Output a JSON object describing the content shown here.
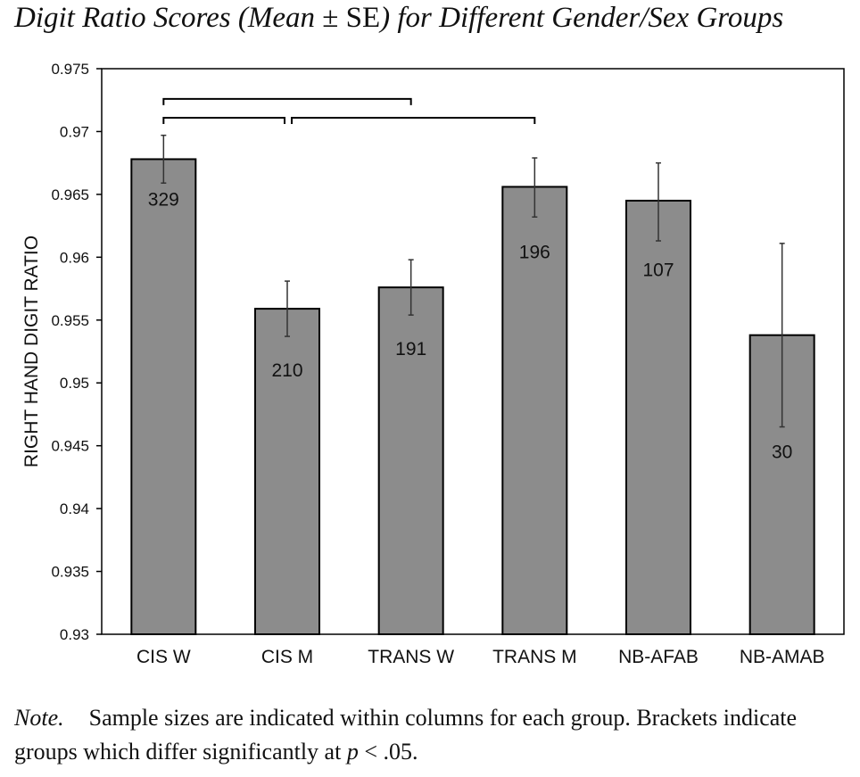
{
  "title": {
    "part1": "Digit Ratio Scores (Mean ",
    "pm": "±",
    "se": " SE",
    "part2": ") for Different Gender/Sex Groups"
  },
  "note": {
    "label": "Note.",
    "text1": "Sample sizes are indicated within columns for each group. Brackets indicate groups which differ significantly at ",
    "p": "p",
    "text2": " < .05."
  },
  "chart_data": {
    "type": "bar",
    "title": "Digit Ratio Scores (Mean ± SE) for Different Gender/Sex Groups",
    "xlabel": "",
    "ylabel": "RIGHT HAND DIGIT RATIO",
    "ylim": [
      0.93,
      0.975
    ],
    "yticks": [
      0.93,
      0.935,
      0.94,
      0.945,
      0.95,
      0.955,
      0.96,
      0.965,
      0.97,
      0.975
    ],
    "ytick_labels": [
      "0.93",
      "0.935",
      "0.94",
      "0.945",
      "0.95",
      "0.955",
      "0.96",
      "0.965",
      "0.97",
      "0.975"
    ],
    "grid": false,
    "categories": [
      "CIS W",
      "CIS M",
      "TRANS W",
      "TRANS M",
      "NB-AFAB",
      "NB-AMAB"
    ],
    "values": [
      0.9678,
      0.9559,
      0.9576,
      0.9656,
      0.9645,
      0.9538
    ],
    "error_low": [
      0.9659,
      0.9537,
      0.9554,
      0.9632,
      0.9613,
      0.9465
    ],
    "error_high": [
      0.9697,
      0.9581,
      0.9598,
      0.9679,
      0.9675,
      0.9611
    ],
    "n_labels": [
      "329",
      "210",
      "191",
      "196",
      "107",
      "30"
    ],
    "n_label_values": [
      0.9646,
      0.951,
      0.9527,
      0.9604,
      0.959,
      0.9445
    ],
    "significance_brackets": [
      {
        "from": "CIS W",
        "to": "TRANS W",
        "level": 0.9726
      },
      {
        "from": "CIS W",
        "to": "CIS M",
        "level": 0.9711
      },
      {
        "from": "CIS M",
        "to": "TRANS M",
        "level": 0.9711
      }
    ],
    "bar_color": "#8c8c8c"
  }
}
